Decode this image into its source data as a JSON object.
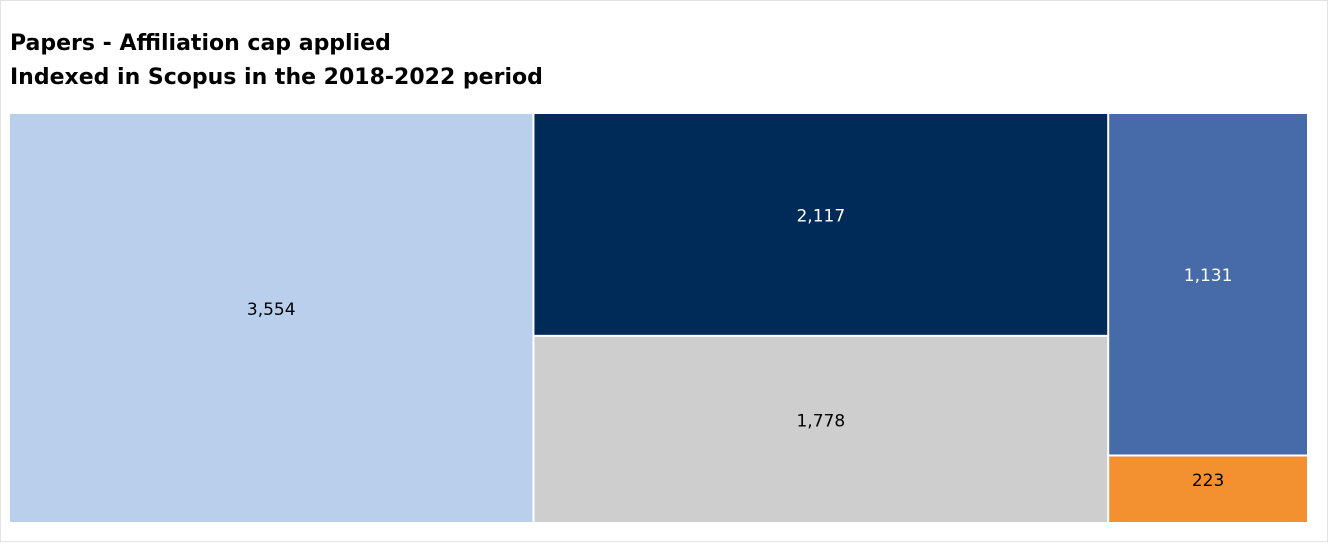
{
  "chart_data": {
    "type": "treemap",
    "title": "Papers - Affiliation cap applied",
    "subtitle": "Indexed in Scopus in the 2018-2022 period",
    "values": [
      3554,
      2117,
      1778,
      1131,
      223
    ],
    "value_labels": [
      "3,554",
      "2,117",
      "1,778",
      "1,131",
      "223"
    ],
    "colors": [
      "#bacfeb",
      "#002b59",
      "#cecece",
      "#466ba8",
      "#f39131"
    ]
  }
}
